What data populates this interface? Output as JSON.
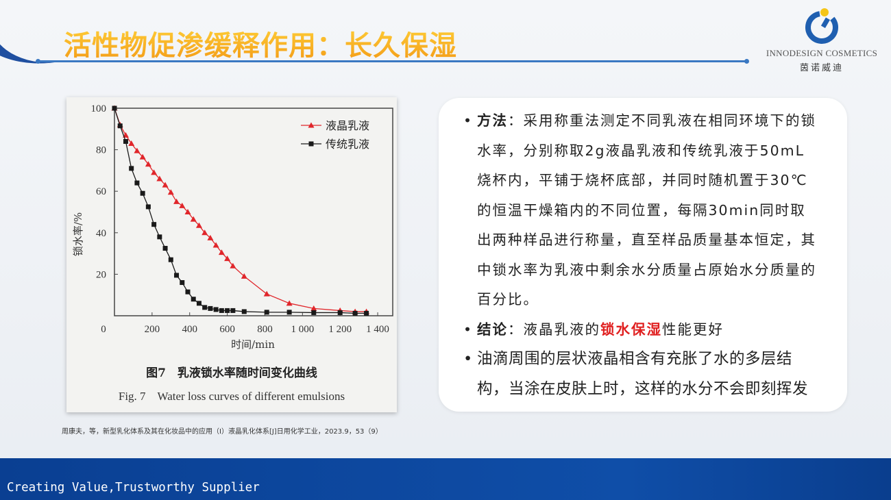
{
  "header": {
    "title": "活性物促渗缓释作用：长久保湿"
  },
  "logo": {
    "en": "INNODESIGN COSMETICS",
    "cn": "茵诺威迪",
    "colors": {
      "blue": "#1f5fb0",
      "yellow": "#f5c518"
    }
  },
  "figure": {
    "caption_cn": "图7　乳液锁水率随时间变化曲线",
    "caption_en": "Fig. 7　Water loss curves of different emulsions"
  },
  "card": {
    "bullets": [
      {
        "lead": "方法",
        "sep": "：",
        "text": "采用称重法测定不同乳液在相同环境下的锁水率，分别称取2g液晶乳液和传统乳液于50mL烧杯内，平铺于烧杯底部，并同时随机置于30℃的恒温干燥箱内的不同位置，每隔30min同时取出两种样品进行称量，直至样品质量基本恒定，其中锁水率为乳液中剩余水分质量占原始水分质量的百分比。"
      },
      {
        "lead": "结论",
        "sep": "：",
        "pre": "液晶乳液的",
        "highlight": "锁水保湿",
        "post": "性能更好"
      },
      {
        "text": "油滴周围的层状液晶相含有充胀了水的多层结构，当涂在皮肤上时，这样的水分不会即刻挥发"
      }
    ]
  },
  "citation": "周康夫，等，新型乳化体系及其在化妆品中的应用（I）液晶乳化体系[J]日用化学工业，2023.9，53（9）",
  "footer": {
    "slogan": "Creating Value,Trustworthy Supplier"
  },
  "chart_data": {
    "type": "line",
    "xlabel": "时间/min",
    "ylabel": "锁水率/%",
    "xlim": [
      0,
      1480
    ],
    "ylim": [
      0,
      100
    ],
    "xticks": [
      0,
      200,
      400,
      600,
      800,
      1000,
      1200,
      1400
    ],
    "xtick_labels": [
      "0",
      "200",
      "400",
      "600",
      "800",
      "1 000",
      "1 200",
      "1 400"
    ],
    "yticks": [
      20,
      40,
      60,
      80,
      100
    ],
    "ytick_labels": [
      "20",
      "40",
      "60",
      "80",
      "100"
    ],
    "grid": false,
    "legend": "top-right",
    "x": [
      0,
      30,
      60,
      90,
      120,
      150,
      180,
      210,
      240,
      270,
      300,
      330,
      360,
      390,
      420,
      450,
      480,
      510,
      540,
      570,
      600,
      630,
      690,
      810,
      930,
      1060,
      1200,
      1280,
      1340
    ],
    "series": [
      {
        "name": "液晶乳液",
        "color": "#e0262b",
        "marker": "triangle",
        "values": [
          100,
          92,
          87,
          83,
          79.5,
          76.5,
          73,
          69,
          66,
          63,
          59.5,
          55,
          53,
          50,
          46.5,
          43.5,
          40,
          37.5,
          34,
          30.5,
          27.5,
          24,
          19,
          10.5,
          6,
          3.5,
          2.5,
          2,
          2
        ]
      },
      {
        "name": "传统乳液",
        "color": "#1a1a1a",
        "marker": "square",
        "values": [
          100,
          91.5,
          84,
          71,
          64,
          59,
          52.5,
          44,
          38,
          32.5,
          27,
          19.5,
          16,
          11.5,
          8,
          6,
          4,
          3.5,
          3,
          2.5,
          2.5,
          2.5,
          2,
          1.7,
          1.7,
          1.5,
          1.5,
          1.2,
          1.2
        ]
      }
    ]
  }
}
